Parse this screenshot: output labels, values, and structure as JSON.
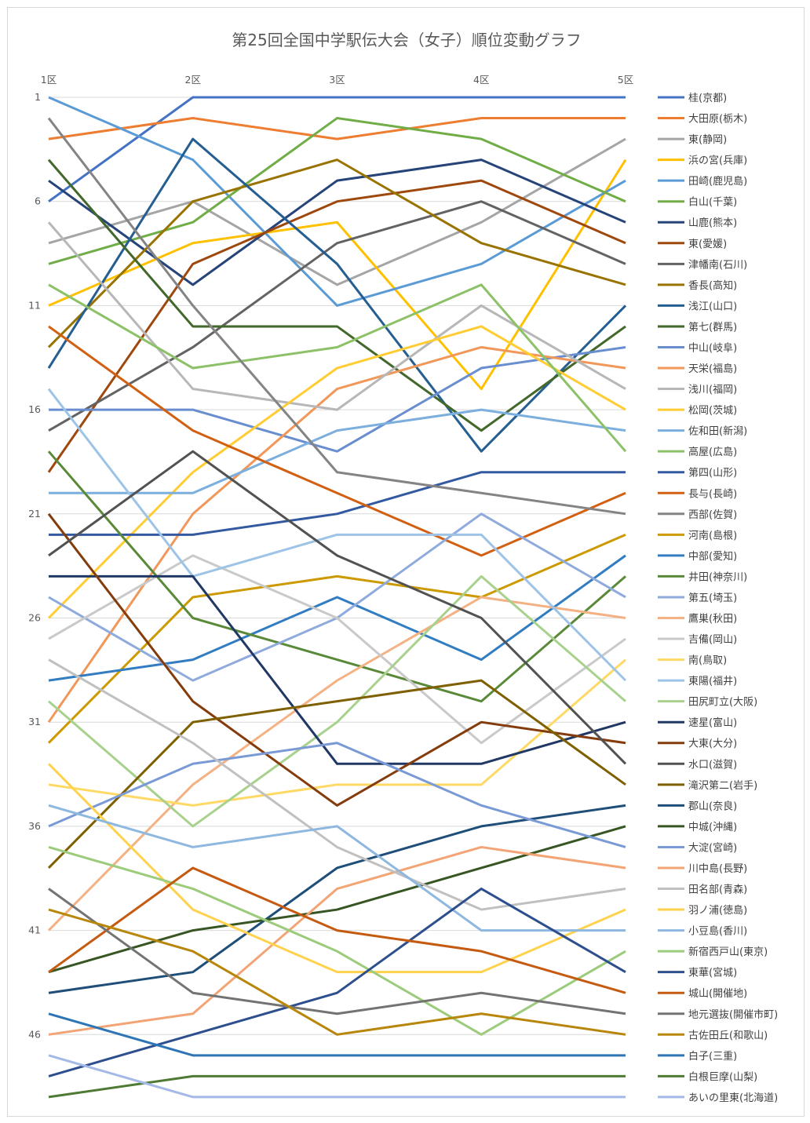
{
  "chart_data": {
    "type": "line",
    "title": "第25回全国中学駅伝大会（女子）順位変動グラフ",
    "categories": [
      "1区",
      "2区",
      "3区",
      "4区",
      "5区"
    ],
    "y_axis": {
      "reversed": true,
      "range": [
        1,
        49
      ],
      "tick_labels": [
        1,
        6,
        11,
        16,
        21,
        26,
        31,
        36,
        41,
        46
      ]
    },
    "grid": "horizontal",
    "legend": "right",
    "series": [
      {
        "name": "桂(京都)",
        "color": "#4472C4",
        "values": [
          6,
          1,
          1,
          1,
          1
        ]
      },
      {
        "name": "大田原(栃木)",
        "color": "#ED7D31",
        "values": [
          3,
          2,
          3,
          2,
          2
        ]
      },
      {
        "name": "東(静岡)",
        "color": "#A5A5A5",
        "values": [
          8,
          6,
          10,
          7,
          3
        ]
      },
      {
        "name": "浜の宮(兵庫)",
        "color": "#FFC000",
        "values": [
          11,
          8,
          7,
          15,
          4
        ]
      },
      {
        "name": "田崎(鹿児島)",
        "color": "#5B9BD5",
        "values": [
          1,
          4,
          11,
          9,
          5
        ]
      },
      {
        "name": "白山(千葉)",
        "color": "#70AD47",
        "values": [
          9,
          7,
          2,
          3,
          6
        ]
      },
      {
        "name": "山鹿(熊本)",
        "color": "#264478",
        "values": [
          5,
          10,
          5,
          4,
          7
        ]
      },
      {
        "name": "東(愛媛)",
        "color": "#9E480E",
        "values": [
          19,
          9,
          6,
          5,
          8
        ]
      },
      {
        "name": "津幡南(石川)",
        "color": "#636363",
        "values": [
          17,
          13,
          8,
          6,
          9
        ]
      },
      {
        "name": "香長(高知)",
        "color": "#997300",
        "values": [
          13,
          6,
          4,
          8,
          10
        ]
      },
      {
        "name": "浅江(山口)",
        "color": "#255E91",
        "values": [
          14,
          3,
          9,
          18,
          11
        ]
      },
      {
        "name": "第七(群馬)",
        "color": "#43682B",
        "values": [
          4,
          12,
          12,
          17,
          12
        ]
      },
      {
        "name": "中山(岐阜)",
        "color": "#698ED0",
        "values": [
          16,
          16,
          18,
          14,
          13
        ]
      },
      {
        "name": "天栄(福島)",
        "color": "#F1975A",
        "values": [
          31,
          21,
          15,
          13,
          14
        ]
      },
      {
        "name": "浅川(福岡)",
        "color": "#B7B7B7",
        "values": [
          7,
          15,
          16,
          11,
          15
        ]
      },
      {
        "name": "松岡(茨城)",
        "color": "#FFCD33",
        "values": [
          26,
          19,
          14,
          12,
          16
        ]
      },
      {
        "name": "佐和田(新潟)",
        "color": "#7CAFDD",
        "values": [
          20,
          20,
          17,
          16,
          17
        ]
      },
      {
        "name": "高屋(広島)",
        "color": "#8CC168",
        "values": [
          10,
          14,
          13,
          10,
          18
        ]
      },
      {
        "name": "第四(山形)",
        "color": "#335AA1",
        "values": [
          22,
          22,
          21,
          19,
          19
        ]
      },
      {
        "name": "長与(長崎)",
        "color": "#D26012",
        "values": [
          12,
          17,
          20,
          23,
          20
        ]
      },
      {
        "name": "西部(佐賀)",
        "color": "#848484",
        "values": [
          2,
          11,
          19,
          20,
          21
        ]
      },
      {
        "name": "河南(島根)",
        "color": "#CC9A00",
        "values": [
          32,
          25,
          24,
          25,
          22
        ]
      },
      {
        "name": "中部(愛知)",
        "color": "#327DC2",
        "values": [
          29,
          28,
          25,
          28,
          23
        ]
      },
      {
        "name": "井田(神奈川)",
        "color": "#5A8A39",
        "values": [
          18,
          26,
          28,
          30,
          24
        ]
      },
      {
        "name": "第五(埼玉)",
        "color": "#8FAADC",
        "values": [
          25,
          29,
          26,
          21,
          25
        ]
      },
      {
        "name": "鷹巣(秋田)",
        "color": "#F4B183",
        "values": [
          41,
          34,
          29,
          25,
          26
        ]
      },
      {
        "name": "吉備(岡山)",
        "color": "#C9C9C9",
        "values": [
          27,
          23,
          26,
          32,
          27
        ]
      },
      {
        "name": "南(鳥取)",
        "color": "#FFD966",
        "values": [
          34,
          35,
          34,
          34,
          28
        ]
      },
      {
        "name": "東陽(福井)",
        "color": "#9DC3E6",
        "values": [
          15,
          24,
          22,
          22,
          29
        ]
      },
      {
        "name": "田尻町立(大阪)",
        "color": "#A9D18E",
        "values": [
          30,
          36,
          31,
          24,
          30
        ]
      },
      {
        "name": "速星(富山)",
        "color": "#203864",
        "values": [
          24,
          24,
          33,
          33,
          31
        ]
      },
      {
        "name": "大東(大分)",
        "color": "#843C0C",
        "values": [
          21,
          30,
          35,
          31,
          32
        ]
      },
      {
        "name": "水口(滋賀)",
        "color": "#525252",
        "values": [
          23,
          18,
          23,
          26,
          33
        ]
      },
      {
        "name": "滝沢第二(岩手)",
        "color": "#7F6000",
        "values": [
          38,
          31,
          30,
          29,
          34
        ]
      },
      {
        "name": "郡山(奈良)",
        "color": "#1F4E79",
        "values": [
          44,
          43,
          38,
          36,
          35
        ]
      },
      {
        "name": "中城(沖縄)",
        "color": "#375623",
        "values": [
          43,
          41,
          40,
          38,
          36
        ]
      },
      {
        "name": "大淀(宮崎)",
        "color": "#7A9AD6",
        "values": [
          36,
          33,
          32,
          35,
          37
        ]
      },
      {
        "name": "川中島(長野)",
        "color": "#F3A474",
        "values": [
          46,
          45,
          39,
          37,
          38
        ]
      },
      {
        "name": "田名部(青森)",
        "color": "#C0C0C0",
        "values": [
          28,
          32,
          37,
          40,
          39
        ]
      },
      {
        "name": "羽ノ浦(徳島)",
        "color": "#FFD24D",
        "values": [
          33,
          40,
          43,
          43,
          40
        ]
      },
      {
        "name": "小豆島(香川)",
        "color": "#8EB8E0",
        "values": [
          35,
          37,
          36,
          41,
          41
        ]
      },
      {
        "name": "新宿西戸山(東京)",
        "color": "#9BCB7B",
        "values": [
          37,
          39,
          42,
          46,
          42
        ]
      },
      {
        "name": "東華(宮城)",
        "color": "#2E4F8E",
        "values": [
          48,
          46,
          44,
          39,
          43
        ]
      },
      {
        "name": "城山(開催地)",
        "color": "#C55A11",
        "values": [
          43,
          38,
          41,
          42,
          44
        ]
      },
      {
        "name": "地元選抜(開催市町)",
        "color": "#737373",
        "values": [
          39,
          44,
          45,
          44,
          45
        ]
      },
      {
        "name": "古佐田丘(和歌山)",
        "color": "#B8860B",
        "values": [
          40,
          42,
          46,
          45,
          46
        ]
      },
      {
        "name": "白子(三重)",
        "color": "#2E75B6",
        "values": [
          45,
          47,
          47,
          47,
          47
        ]
      },
      {
        "name": "白根巨摩(山梨)",
        "color": "#4E7A34",
        "values": [
          49,
          48,
          48,
          48,
          48
        ]
      },
      {
        "name": "あいの里東(北海道)",
        "color": "#A4B9E6",
        "values": [
          47,
          49,
          49,
          49,
          49
        ]
      }
    ]
  }
}
